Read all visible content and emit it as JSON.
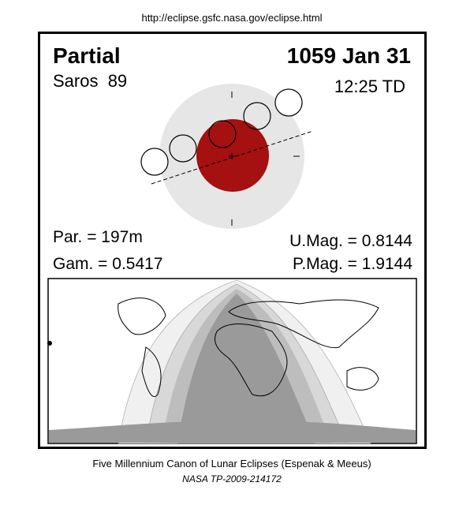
{
  "url": "http://eclipse.gsfc.nasa.gov/eclipse.html",
  "header": {
    "eclipse_type": "Partial",
    "date": "1059 Jan 31",
    "saros": "Saros  89",
    "time": "12:25 TD"
  },
  "parameters": {
    "par": "Par. = 197m",
    "gam": "Gam. = 0.5417",
    "umag": "U.Mag. = 0.8144",
    "pmag": "P.Mag. = 1.9144"
  },
  "footer": {
    "line1": "Five Millennium Canon of Lunar Eclipses (Espenak & Meeus)",
    "line2": "NASA TP-2009-214172"
  }
}
